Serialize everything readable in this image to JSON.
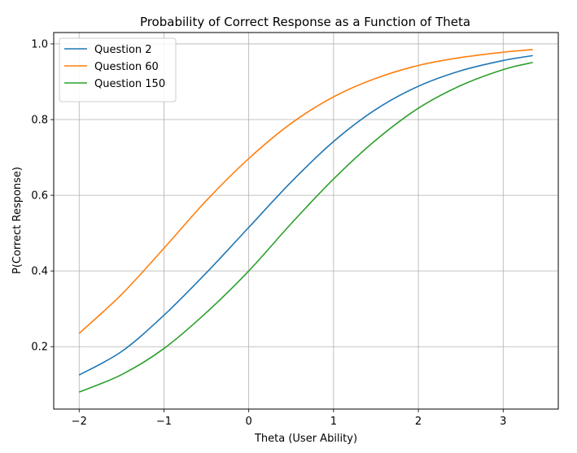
{
  "chart_data": {
    "type": "line",
    "title": "Probability of Correct Response as a Function of Theta",
    "xlabel": "Theta (User Ability)",
    "ylabel": "P(Correct Response)",
    "xlim": [
      -2.3,
      3.65
    ],
    "ylim": [
      0.035,
      1.03
    ],
    "xticks": [
      -2,
      -1,
      0,
      1,
      2,
      3
    ],
    "yticks": [
      0.2,
      0.4,
      0.6,
      0.8,
      1.0
    ],
    "xtick_labels": [
      "−2",
      "−1",
      "0",
      "1",
      "2",
      "3"
    ],
    "ytick_labels": [
      "0.2",
      "0.4",
      "0.6",
      "0.8",
      "1.0"
    ],
    "grid": true,
    "legend_position": "top-left",
    "x_range": [
      -2,
      3.35
    ],
    "series": [
      {
        "name": "Question 2",
        "color": "#1f77b4",
        "x": [
          -2,
          -1.5,
          -1,
          -0.5,
          0,
          0.5,
          1,
          1.5,
          2,
          2.5,
          3,
          3.35
        ],
        "y": [
          0.125,
          0.187,
          0.283,
          0.395,
          0.515,
          0.635,
          0.742,
          0.827,
          0.888,
          0.929,
          0.956,
          0.969
        ]
      },
      {
        "name": "Question 60",
        "color": "#ff7f0e",
        "x": [
          -2,
          -1.5,
          -1,
          -0.5,
          0,
          0.5,
          1,
          1.5,
          2,
          2.5,
          3,
          3.35
        ],
        "y": [
          0.235,
          0.338,
          0.46,
          0.586,
          0.697,
          0.79,
          0.86,
          0.909,
          0.943,
          0.964,
          0.978,
          0.985
        ]
      },
      {
        "name": "Question 150",
        "color": "#2ca02c",
        "x": [
          -2,
          -1.5,
          -1,
          -0.5,
          0,
          0.5,
          1,
          1.5,
          2,
          2.5,
          3,
          3.35
        ],
        "y": [
          0.08,
          0.126,
          0.195,
          0.29,
          0.4,
          0.525,
          0.643,
          0.746,
          0.83,
          0.89,
          0.932,
          0.951
        ]
      }
    ]
  }
}
